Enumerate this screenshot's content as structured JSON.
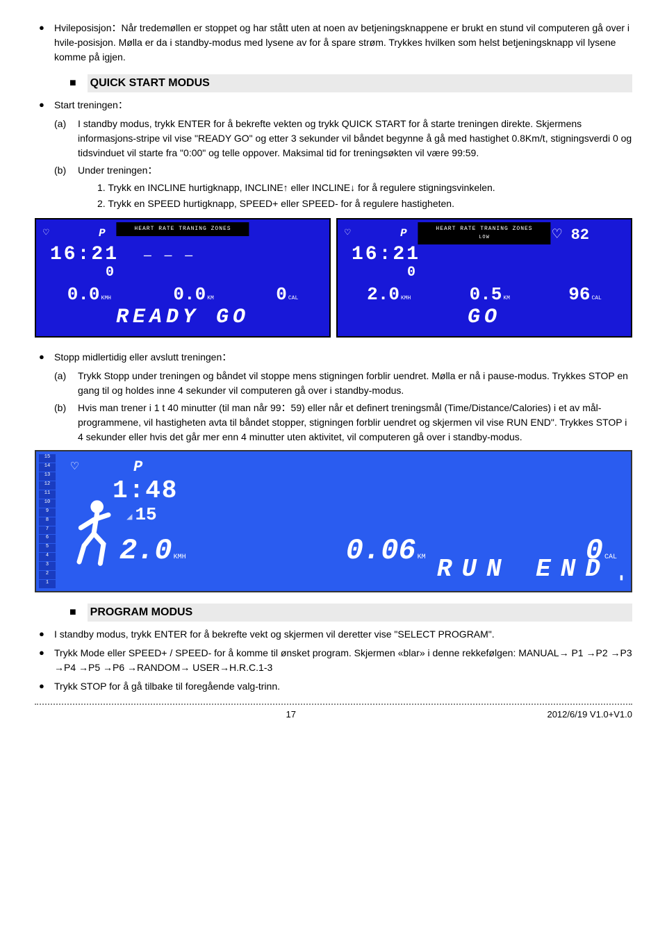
{
  "intro_bullet": "Hvileposisjon：Når tredemøllen er stoppet og har stått uten at noen av betjeningsknappene er brukt en stund vil computeren gå over i hvile-posisjon. Mølla er da i standby-modus med lysene av for å spare strøm. Trykkes hvilken som helst betjeningsknapp vil lysene komme på igjen.",
  "quick_start_heading": "QUICK START MODUS",
  "start_label": "Start treningen：",
  "qs_a_label": "(a)",
  "qs_a_text": "I standby modus, trykk ENTER for å bekrefte vekten og trykk QUICK START for å starte treningen direkte. Skjermens informasjons-stripe vil vise \"READY GO\" og etter 3 sekunder vil båndet begynne å gå med hastighet 0.8Km/t, stigningsverdi 0 og tidsvinduet vil starte fra \"0:00\" og telle oppover. Maksimal tid for treningsøkten vil være 99:59.",
  "qs_b_label": "(b)",
  "qs_b_text": "Under treningen：",
  "qs_b_1": "1. Trykk en INCLINE hurtigknapp, INCLINE↑ eller INCLINE↓ for å regulere stigningsvinkelen.",
  "qs_b_2": "2. Trykk en SPEED hurtigknapp, SPEED+ eller SPEED- for å regulere hastigheten.",
  "display1": {
    "hr_zones": "HEART RATE TRANING ZONES",
    "p": "P",
    "time": "16:21",
    "mid": "0",
    "dashes": "— — —",
    "v1": "0.0",
    "u1": "KMH",
    "v2": "0.0",
    "u2": "KM",
    "v3": "0",
    "u3": "CAL",
    "big": "READY  GO"
  },
  "display2": {
    "hr_zones": "HEART RATE TRANING ZONES",
    "hr_sub": "LOW",
    "pulse": "82",
    "p": "P",
    "time": "16:21",
    "mid": "0",
    "v1": "2.0",
    "u1": "KMH",
    "v2": "0.5",
    "u2": "KM",
    "v3": "96",
    "u3": "CAL",
    "big": "GO"
  },
  "stop_label": "Stopp midlertidig eller avslutt treningen：",
  "st_a_label": "(a)",
  "st_a_text": "Trykk Stopp under treningen og båndet vil stoppe mens stigningen forblir uendret. Mølla er nå i pause-modus. Trykkes STOP en gang til og holdes inne 4 sekunder vil computeren gå over i standby-modus.",
  "st_b_label": "(b)",
  "st_b_text": "Hvis man trener i 1 t 40 minutter (til man når 99：59) eller når et definert treningsmål (Time/Distance/Calories) i et av mål-programmene, vil hastigheten avta til båndet stopper, stigningen forblir uendret og skjermen vil vise RUN END\". Trykkes STOP i 4 sekunder eller hvis det går mer enn 4 minutter uten aktivitet, vil computeren gå over i standby-modus.",
  "display3": {
    "levels": [
      "15",
      "14",
      "13",
      "12",
      "11",
      "10",
      "9",
      "8",
      "7",
      "6",
      "5",
      "4",
      "3",
      "2",
      "1"
    ],
    "p": "P",
    "time": "1:48",
    "ang": "15",
    "v1": "2.0",
    "u1": "KMH",
    "v2": "0.06",
    "u2": "KM",
    "v3": "0",
    "u3": "CAL",
    "big": "RUN END"
  },
  "program_heading": "PROGRAM MODUS",
  "pm_1": "I standby modus, trykk ENTER for å bekrefte vekt og skjermen vil deretter vise \"SELECT PROGRAM\".",
  "pm_2": "Trykk Mode eller SPEED+ / SPEED- for å komme til ønsket program. Skjermen «blar» i denne rekkefølgen: MANUAL→ P1 →P2 →P3 →P4 →P5 →P6 →RANDOM→ USER→H.R.C.1-3",
  "pm_3": "Trykk STOP for å gå tilbake til foregående valg-trinn.",
  "footer_page": "17",
  "footer_right": "2012/6/19 V1.0+V1.0"
}
